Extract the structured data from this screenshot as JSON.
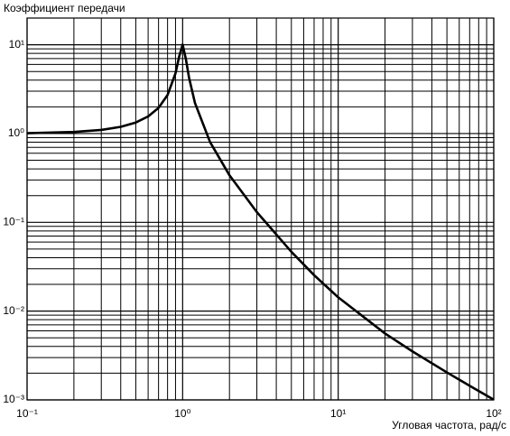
{
  "chart_data": {
    "type": "line",
    "title": "Коэффициент передачи",
    "xlabel": "Угловая частота, рад/с",
    "x": [
      0.1,
      0.2,
      0.3,
      0.4,
      0.5,
      0.6,
      0.7,
      0.8,
      0.9,
      0.95,
      1.0,
      1.05,
      1.1,
      1.2,
      1.5,
      2,
      3,
      5,
      7,
      10,
      20,
      30,
      50,
      70,
      100
    ],
    "values": [
      1.01,
      1.042,
      1.099,
      1.19,
      1.332,
      1.558,
      1.947,
      2.72,
      4.78,
      7.38,
      10.05,
      6.85,
      4.24,
      2.21,
      0.803,
      0.339,
      0.1304,
      0.0466,
      0.0254,
      0.0143,
      0.0056,
      0.00352,
      0.00204,
      0.00144,
      0.001005
    ],
    "color": "#000000",
    "xscale": "log",
    "yscale": "log",
    "xlim": [
      0.1,
      100
    ],
    "ylim": [
      0.001,
      20
    ],
    "xticks": [
      {
        "value": 0.1,
        "label": "10⁻¹"
      },
      {
        "value": 1,
        "label": "10⁰"
      },
      {
        "value": 10,
        "label": "10¹"
      },
      {
        "value": 100,
        "label": "10²"
      }
    ],
    "yticks": [
      {
        "value": 0.001,
        "label": "10⁻³"
      },
      {
        "value": 0.01,
        "label": "10⁻²"
      },
      {
        "value": 0.1,
        "label": "10⁻¹"
      },
      {
        "value": 1,
        "label": "10⁰"
      },
      {
        "value": 10,
        "label": "10¹"
      }
    ],
    "grid": true
  }
}
